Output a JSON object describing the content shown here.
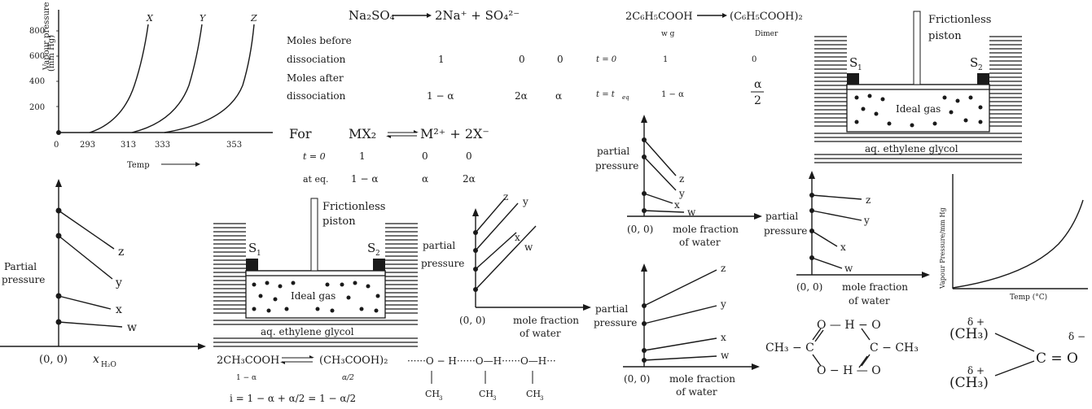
{
  "vp_temp_chart": {
    "ylabel_line1": "Vapour pressure",
    "ylabel_line2": "(mm Hg)",
    "xlabel": "Temp",
    "y_ticks": [
      "800",
      "600",
      "400",
      "200"
    ],
    "x_ticks": [
      "0",
      "293",
      "313",
      "333",
      "353"
    ],
    "curves": [
      "X",
      "Y",
      "Z"
    ]
  },
  "dissociation_table": {
    "equation_lhs": "Na₂SO₄",
    "equation_rhs": "2Na⁺ + SO₄²⁻",
    "row1_label_a": "Moles before",
    "row1_label_b": "dissociation",
    "row1_values": [
      "1",
      "0",
      "0"
    ],
    "row2_label_a": "Moles after",
    "row2_label_b": "dissociation",
    "row2_values": [
      "1 − α",
      "2α",
      "α"
    ]
  },
  "dimer_table": {
    "equation_lhs": "2C₆H₅COOH",
    "equation_rhs": "(C₆H₅COOH)₂",
    "lhs_sub": "w g",
    "rhs_sub": "Dimer",
    "row1": [
      "t = 0",
      "1",
      "0"
    ],
    "row2": [
      "t = t",
      "eq",
      "1 − α"
    ],
    "alpha_num": "α",
    "alpha_den": "2"
  },
  "mx2_table": {
    "for_label": "For",
    "equation_lhs": "MX₂",
    "equation_rhs": "M²⁺ + 2X⁻",
    "row1": [
      "t = 0",
      "1",
      "0",
      "0"
    ],
    "row2": [
      "at eq.",
      "1 − α",
      "α",
      "2α"
    ]
  },
  "piston_top": {
    "piston_label_a": "Frictionless",
    "piston_label_b": "piston",
    "s1": "S",
    "s2": "S",
    "s1_sub": "1",
    "s2_sub": "2",
    "gas": "Ideal gas",
    "liquid": "aq. ethylene glycol"
  },
  "piston_bottom": {
    "piston_label_a": "Frictionless",
    "piston_label_b": "piston",
    "s1": "S",
    "s2": "S",
    "s1_sub": "1",
    "s2_sub": "2",
    "gas": "Ideal gas",
    "liquid": "aq. ethylene glycol"
  },
  "partial_plot_left": {
    "ylabel_a": "Partial",
    "ylabel_b": "pressure",
    "origin": "(0, 0)",
    "xlabel": "x",
    "xlabel_sub": "H₂O",
    "lines": [
      "z",
      "y",
      "x",
      "w"
    ]
  },
  "partial_plot_mid": {
    "ylabel_a": "partial",
    "ylabel_b": "pressure",
    "origin": "(0, 0)",
    "xlabel_a": "mole fraction",
    "xlabel_b": "of water",
    "lines": [
      "z",
      "y",
      "x",
      "w"
    ]
  },
  "partial_plot_top_right": {
    "ylabel_a": "partial",
    "ylabel_b": "pressure",
    "origin": "(0, 0)",
    "xlabel_a": "mole fraction",
    "xlabel_b": "of water",
    "lines": [
      "z",
      "y",
      "x",
      "w"
    ]
  },
  "partial_plot_bottom_right": {
    "ylabel_a": "partial",
    "ylabel_b": "pressure",
    "origin": "(0, 0)",
    "xlabel_a": "mole fraction",
    "xlabel_b": "of water",
    "lines": [
      "z",
      "y",
      "x",
      "w"
    ]
  },
  "partial_plot_far_right": {
    "ylabel_a": "partial",
    "ylabel_b": "pressure",
    "origin": "(0, 0)",
    "xlabel_a": "mole fraction",
    "xlabel_b": "of water",
    "lines": [
      "z",
      "y",
      "x",
      "w"
    ]
  },
  "vp_curve_right": {
    "ylabel": "Vapour Pressure/mm Hg",
    "xlabel": "Temp (°C)"
  },
  "acetic_dimer": {
    "lhs": "2CH₃COOH",
    "rhs": "(CH₃COOH)₂",
    "lhs_sub": "1 − α",
    "rhs_sub": "α/2",
    "vanthoff": "i = 1 − α + α/2 = 1 − α/2",
    "hbond_chain": "······O − H······O—H······O—H···",
    "ch3": "CH"
  },
  "carboxylic_dimer": {
    "left": "CH₃ − C",
    "right": "C − CH₃",
    "top": "O — H − O",
    "bottom": "O − H — O"
  },
  "acetone": {
    "delta_plus": "δ +",
    "delta_minus": "δ −",
    "ch3": "(CH₃)",
    "carbonyl": "C = O"
  }
}
